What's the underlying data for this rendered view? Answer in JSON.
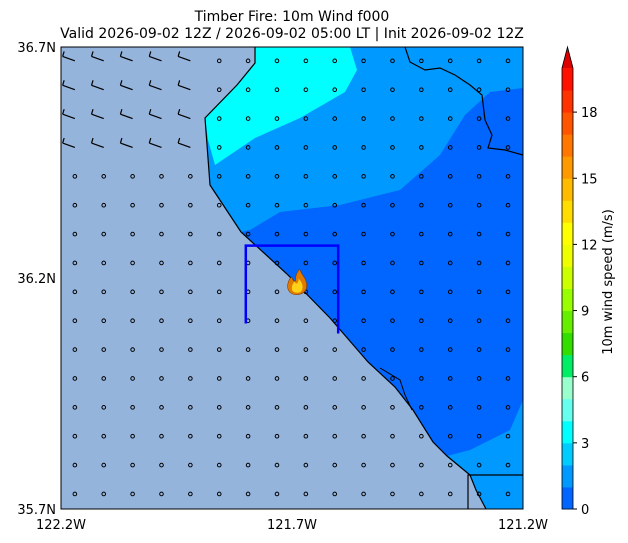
{
  "title": {
    "line1": "Timber Fire: 10m Wind f000",
    "line2": "Valid 2026-09-02 12Z / 2026-09-02 05:00 LT | Init 2026-09-02 12Z"
  },
  "colors": {
    "ocean": "#95b4dc",
    "domain_box": "#0000ff",
    "fire_outer": "#e07b00",
    "fire_inner": "#ffd21a"
  },
  "chart_data": {
    "type": "heatmap",
    "title": "Timber Fire: 10m Wind f000",
    "xlabel": "",
    "ylabel": "",
    "xlim": [
      -122.2,
      -121.2
    ],
    "ylim": [
      35.7,
      36.7
    ],
    "x_ticks": [
      {
        "value": -122.2,
        "label": "122.2W"
      },
      {
        "value": -121.7,
        "label": "121.7W"
      },
      {
        "value": -121.2,
        "label": "121.2W"
      }
    ],
    "y_ticks": [
      {
        "value": 36.7,
        "label": "36.7N"
      },
      {
        "value": 36.2,
        "label": "36.2N"
      },
      {
        "value": 35.7,
        "label": "35.7N"
      }
    ],
    "colorbar": {
      "label": "10m wind speed (m/s)",
      "min": 0,
      "max": 20,
      "extend": "max",
      "ticks": [
        0,
        3,
        6,
        9,
        12,
        15,
        18
      ],
      "levels": [
        {
          "from": 0,
          "to": 1,
          "color": "#0066ff"
        },
        {
          "from": 1,
          "to": 2,
          "color": "#0099ff"
        },
        {
          "from": 2,
          "to": 3,
          "color": "#00ccff"
        },
        {
          "from": 3,
          "to": 4,
          "color": "#00ffff"
        },
        {
          "from": 4,
          "to": 5,
          "color": "#66ffee"
        },
        {
          "from": 5,
          "to": 6,
          "color": "#99ffcc"
        },
        {
          "from": 6,
          "to": 7,
          "color": "#00ee66"
        },
        {
          "from": 7,
          "to": 8,
          "color": "#33dd00"
        },
        {
          "from": 8,
          "to": 9,
          "color": "#66ee00"
        },
        {
          "from": 9,
          "to": 10,
          "color": "#99ff00"
        },
        {
          "from": 10,
          "to": 11,
          "color": "#ccff00"
        },
        {
          "from": 11,
          "to": 12,
          "color": "#eeff00"
        },
        {
          "from": 12,
          "to": 13,
          "color": "#ffff00"
        },
        {
          "from": 13,
          "to": 14,
          "color": "#ffdd00"
        },
        {
          "from": 14,
          "to": 15,
          "color": "#ffbb00"
        },
        {
          "from": 15,
          "to": 16,
          "color": "#ff9900"
        },
        {
          "from": 16,
          "to": 17,
          "color": "#ff7700"
        },
        {
          "from": 17,
          "to": 18,
          "color": "#ff5500"
        },
        {
          "from": 18,
          "to": 19,
          "color": "#ff3300"
        },
        {
          "from": 19,
          "to": 20,
          "color": "#ff1100"
        }
      ],
      "over_color": "#dd0000"
    },
    "contour_regions": [
      {
        "speed_band": [
          0,
          1
        ],
        "description_color": "#0066ff"
      },
      {
        "speed_band": [
          1,
          2
        ],
        "description_color": "#0099ff"
      },
      {
        "speed_band": [
          3,
          4
        ],
        "description_color": "#00ffff"
      }
    ],
    "fire_location": {
      "lon": -121.69,
      "lat": 36.19
    },
    "inner_domain": {
      "lon_min": -121.8,
      "lon_max": -121.6,
      "lat_min": 36.08,
      "lat_max": 36.27
    },
    "wind_barbs": {
      "grid_spacing_deg": 0.0625,
      "offshore_nw_direction": "from NW",
      "onshore": "calm"
    }
  }
}
